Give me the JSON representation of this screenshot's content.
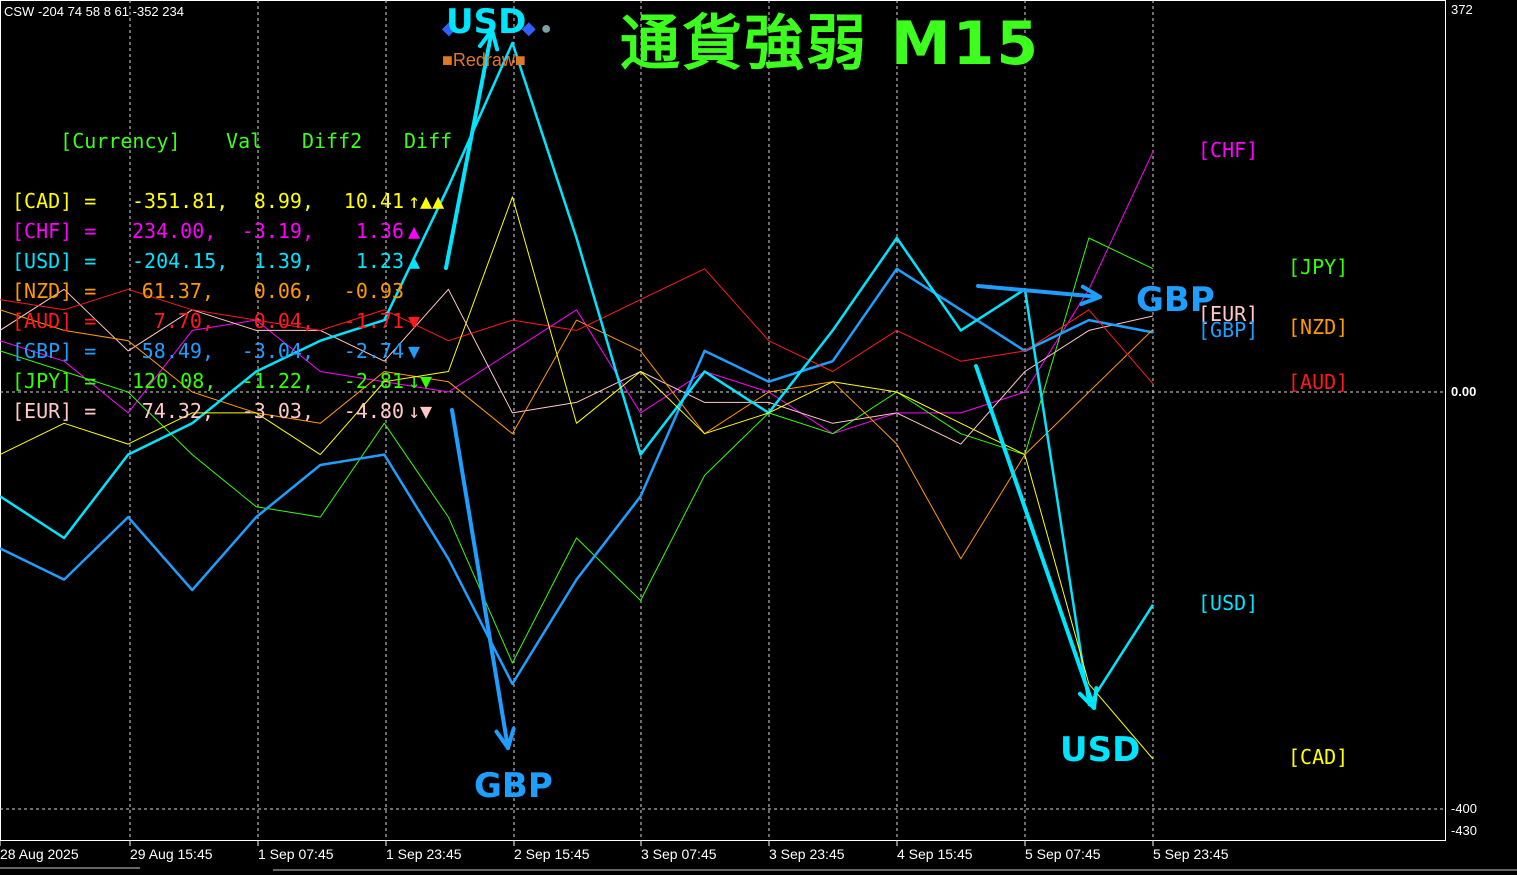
{
  "header": "CSW -204 74 58 8 61 -352 234",
  "title": "通貨強弱  M15",
  "table": {
    "headers": [
      "[Currency]",
      "Val",
      "Diff2",
      "Diff"
    ],
    "rows": [
      {
        "name": "[CAD]",
        "eq": "=",
        "val": "-351.81,",
        "diff2": "8.99,",
        "diff": "10.41",
        "arrow": "↑",
        "mark": "▲▲",
        "color": "#ffff00"
      },
      {
        "name": "[CHF]",
        "eq": "=",
        "val": "234.00,",
        "diff2": "-3.19,",
        "diff": "1.36",
        "arrow": "",
        "mark": "▲",
        "color": "#ff00ff"
      },
      {
        "name": "[USD]",
        "eq": "=",
        "val": "-204.15,",
        "diff2": "1.39,",
        "diff": "1.23",
        "arrow": "",
        "mark": "▲",
        "color": "#00e5ff"
      },
      {
        "name": "[NZD]",
        "eq": "=",
        "val": "61.37,",
        "diff2": "0.06,",
        "diff": "-0.93",
        "arrow": "",
        "mark": "",
        "color": "#ff9900"
      },
      {
        "name": "[AUD]",
        "eq": "=",
        "val": "7.70,",
        "diff2": "0.04,",
        "diff": "-1.71",
        "arrow": "",
        "mark": "▼",
        "color": "#ff1a1a"
      },
      {
        "name": "[GBP]",
        "eq": "=",
        "val": "58.49,",
        "diff2": "-3.04,",
        "diff": "-2.74",
        "arrow": "",
        "mark": "▼",
        "color": "#1e9fff"
      },
      {
        "name": "[JPY]",
        "eq": "=",
        "val": "120.08,",
        "diff2": "-1.22,",
        "diff": "-2.81",
        "arrow": "↓",
        "mark": "▼",
        "color": "#33ff00"
      },
      {
        "name": "[EUR]",
        "eq": "=",
        "val": "74.32,",
        "diff2": "-3.03,",
        "diff": "-4.80",
        "arrow": "↓",
        "mark": "▼",
        "color": "#ffc8c8"
      }
    ]
  },
  "buttons": {
    "redraw": "Redraw"
  },
  "annotations": {
    "usd_top": "USD",
    "gbp_bottom": "GBP",
    "gbp_right": "GBP",
    "usd_right": "USD"
  },
  "chart_data": {
    "type": "line",
    "timeframe": "M15",
    "ylim": [
      -430,
      372
    ],
    "yticks": [
      "372",
      "0.00",
      "-400",
      "-430"
    ],
    "xtick_labels": [
      "28 Aug 2025",
      "29 Aug 15:45",
      "1 Sep 07:45",
      "1 Sep 23:45",
      "2 Sep 15:45",
      "3 Sep 07:45",
      "3 Sep 23:45",
      "4 Sep 15:45",
      "5 Sep 07:45",
      "5 Sep 23:45"
    ],
    "x": [
      0,
      0.5,
      1,
      1.5,
      2,
      2.5,
      3,
      3.5,
      4,
      4.5,
      5,
      5.5,
      6,
      6.5,
      7,
      7.5,
      8,
      8.5,
      9
    ],
    "series": [
      {
        "name": "[CHF]",
        "color": "#ff00ff",
        "width": 1,
        "values": [
          50,
          30,
          -20,
          60,
          70,
          20,
          10,
          0,
          40,
          80,
          -20,
          20,
          0,
          -40,
          -20,
          -20,
          0,
          100,
          234
        ]
      },
      {
        "name": "[JPY]",
        "color": "#33ff00",
        "width": 1,
        "values": [
          40,
          20,
          0,
          -60,
          -110,
          -120,
          -30,
          -120,
          -260,
          -140,
          -200,
          -80,
          -20,
          -40,
          0,
          -40,
          -60,
          150,
          120
        ]
      },
      {
        "name": "[EUR]",
        "color": "#ffc8c8",
        "width": 1,
        "values": [
          60,
          100,
          40,
          80,
          60,
          60,
          30,
          100,
          -20,
          -10,
          20,
          -10,
          -10,
          -30,
          -20,
          -50,
          20,
          60,
          74
        ]
      },
      {
        "name": "[GBP]",
        "color": "#1e9fff",
        "width": 2.5,
        "values": [
          -150,
          -180,
          -120,
          -190,
          -120,
          -70,
          -60,
          -160,
          -280,
          -180,
          -100,
          40,
          10,
          30,
          120,
          80,
          40,
          70,
          58
        ]
      },
      {
        "name": "[NZD]",
        "color": "#ff9900",
        "width": 1,
        "values": [
          80,
          60,
          50,
          0,
          -20,
          -30,
          20,
          10,
          -40,
          70,
          40,
          -40,
          0,
          10,
          -50,
          -160,
          -60,
          0,
          61
        ]
      },
      {
        "name": "[AUD]",
        "color": "#ff1a1a",
        "width": 1,
        "values": [
          90,
          80,
          100,
          80,
          70,
          60,
          80,
          50,
          70,
          60,
          90,
          120,
          50,
          20,
          60,
          30,
          40,
          80,
          8
        ]
      },
      {
        "name": "[USD]",
        "color": "#00e5ff",
        "width": 2.5,
        "values": [
          -100,
          -140,
          -60,
          -30,
          20,
          50,
          70,
          200,
          340,
          150,
          -60,
          20,
          -20,
          60,
          150,
          60,
          100,
          -300,
          -204
        ]
      },
      {
        "name": "[CAD]",
        "color": "#ffff00",
        "width": 1,
        "values": [
          -60,
          -30,
          -50,
          -20,
          -20,
          -60,
          10,
          20,
          190,
          -30,
          20,
          -40,
          -20,
          10,
          0,
          -30,
          -60,
          -280,
          -352
        ]
      }
    ]
  }
}
